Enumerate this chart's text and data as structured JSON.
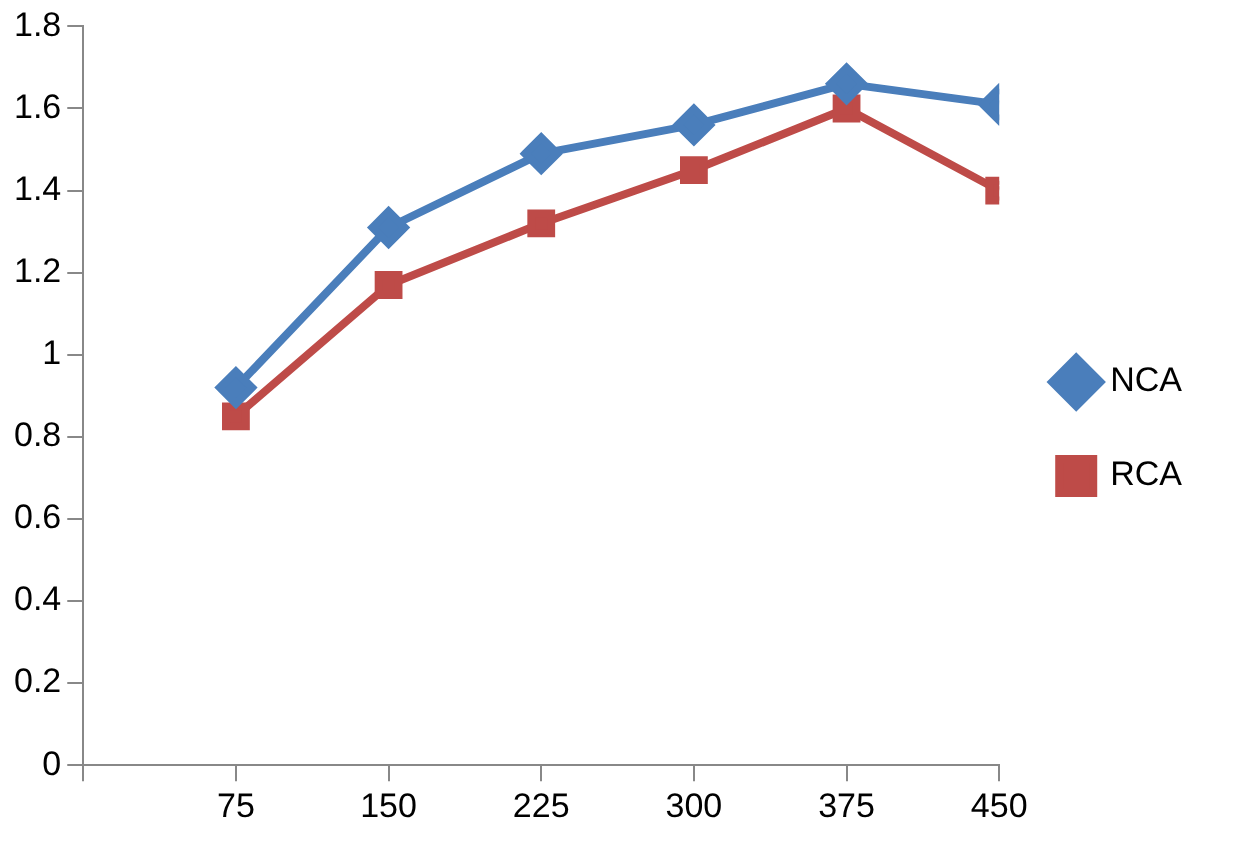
{
  "chart_data": {
    "type": "line",
    "x": [
      75,
      150,
      225,
      300,
      375,
      450
    ],
    "xlim": [
      0,
      450
    ],
    "xticks": [
      {
        "value": 0,
        "label": null
      },
      75,
      150,
      225,
      300,
      375,
      450
    ],
    "ylim": [
      0,
      1.8
    ],
    "yticks": [
      0,
      0.2,
      0.4,
      0.6,
      0.8,
      1,
      1.2,
      1.4,
      1.6,
      1.8
    ],
    "series": [
      {
        "name": "NCA",
        "color": "#4a7ebb",
        "marker": "diamond",
        "values": [
          0.92,
          1.31,
          1.49,
          1.56,
          1.66,
          1.61
        ]
      },
      {
        "name": "RCA",
        "color": "#be4b48",
        "marker": "square",
        "values": [
          0.85,
          1.17,
          1.32,
          1.45,
          1.6,
          1.4
        ]
      }
    ],
    "grid": false,
    "legend": "right",
    "line_style": "solid"
  }
}
